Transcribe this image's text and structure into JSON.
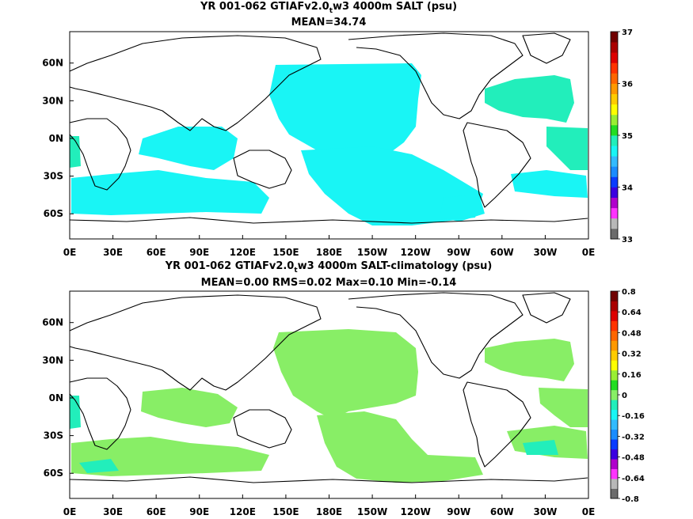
{
  "chart_data": [
    {
      "type": "heatmap",
      "title_prefix": "YR 001-062 GTIAFv2.0",
      "title_sub": "t",
      "title_suffix": "w3 4000m SALT (psu)",
      "subtitle": "MEAN=34.74",
      "x_ticks": [
        "0E",
        "30E",
        "60E",
        "90E",
        "120E",
        "150E",
        "180E",
        "150W",
        "120W",
        "90W",
        "60W",
        "30W",
        "0E"
      ],
      "y_ticks": [
        "60N",
        "30N",
        "0N",
        "30S",
        "60S"
      ],
      "xlim": [
        0,
        360
      ],
      "ylim": [
        -80,
        85
      ],
      "colorbar": {
        "tick_labels": [
          "37",
          "36",
          "35",
          "34",
          "33"
        ],
        "range": [
          33,
          37
        ],
        "colors": [
          "#6b6b6b",
          "#b8b8b8",
          "#ff33ff",
          "#b000cc",
          "#3b00e0",
          "#0a3cff",
          "#1a8cff",
          "#33bbff",
          "#19f5f5",
          "#22eebb",
          "#22dd22",
          "#99ee33",
          "#ffff00",
          "#ffcc00",
          "#ff9900",
          "#ff6600",
          "#ff3300",
          "#dd0000",
          "#aa0000",
          "#700000"
        ]
      },
      "field_color": "#19f5f5",
      "field_color_2": "#22eebb"
    },
    {
      "type": "heatmap",
      "title_prefix": "YR 001-062 GTIAFv2.0",
      "title_sub": "t",
      "title_suffix": "w3 4000m SALT-climatology (psu)",
      "subtitle": "MEAN=0.00   RMS=0.02   Max=0.10   Min=-0.14",
      "x_ticks": [
        "0E",
        "30E",
        "60E",
        "90E",
        "120E",
        "150E",
        "180E",
        "150W",
        "120W",
        "90W",
        "60W",
        "30W",
        "0E"
      ],
      "y_ticks": [
        "60N",
        "30N",
        "0N",
        "30S",
        "60S"
      ],
      "xlim": [
        0,
        360
      ],
      "ylim": [
        -80,
        85
      ],
      "colorbar": {
        "tick_labels": [
          "0.8",
          "0.64",
          "0.48",
          "0.32",
          "0.16",
          "0",
          "-0.16",
          "-0.32",
          "-0.48",
          "-0.64",
          "-0.8"
        ],
        "range": [
          -0.8,
          0.8
        ],
        "colors": [
          "#6b6b6b",
          "#b8b8b8",
          "#ff33ff",
          "#b000cc",
          "#3b00e0",
          "#0a3cff",
          "#1a8cff",
          "#33bbff",
          "#19f5f5",
          "#22eebb",
          "#88ee66",
          "#22dd22",
          "#99ee33",
          "#ffff00",
          "#ffcc00",
          "#ff9900",
          "#ff6600",
          "#ff3300",
          "#dd0000",
          "#aa0000",
          "#700000"
        ]
      },
      "field_color": "#88ee66",
      "field_color_2": "#22eebb"
    }
  ]
}
